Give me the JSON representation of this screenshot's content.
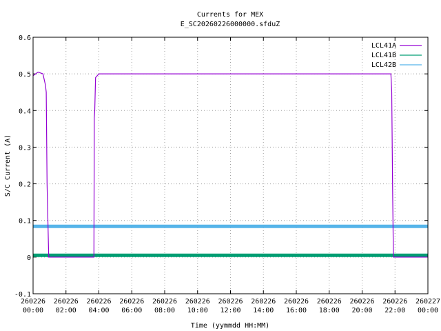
{
  "chart_data": {
    "type": "line",
    "title": "Currents for MEX",
    "subtitle": "E_SC20260226000000.sfduZ",
    "xlabel": "Time (yymmdd HH:MM)",
    "ylabel": "S/C Current (A)",
    "x_unit": "hours",
    "xlim": [
      0,
      24
    ],
    "ylim": [
      -0.1,
      0.6
    ],
    "y_ticks": [
      "-0.1",
      "0",
      "0.1",
      "0.2",
      "0.3",
      "0.4",
      "0.5",
      "0.6"
    ],
    "x_ticks": [
      {
        "date": "260226",
        "time": "00:00"
      },
      {
        "date": "260226",
        "time": "02:00"
      },
      {
        "date": "260226",
        "time": "04:00"
      },
      {
        "date": "260226",
        "time": "06:00"
      },
      {
        "date": "260226",
        "time": "08:00"
      },
      {
        "date": "260226",
        "time": "10:00"
      },
      {
        "date": "260226",
        "time": "12:00"
      },
      {
        "date": "260226",
        "time": "14:00"
      },
      {
        "date": "260226",
        "time": "16:00"
      },
      {
        "date": "260226",
        "time": "18:00"
      },
      {
        "date": "260226",
        "time": "20:00"
      },
      {
        "date": "260226",
        "time": "22:00"
      },
      {
        "date": "260227",
        "time": "00:00"
      }
    ],
    "grid": true,
    "legend_position": "top-right",
    "series": [
      {
        "name": "LCL41A",
        "color": "#9400d3",
        "x": [
          0.0,
          0.3,
          0.6,
          0.75,
          0.8,
          0.85,
          0.95,
          1.5,
          2.5,
          3.5,
          3.7,
          3.72,
          3.75,
          3.8,
          4.0,
          5.0,
          5.5,
          6.0,
          8.0,
          10.0,
          12.0,
          14.0,
          16.0,
          18.0,
          20.0,
          21.0,
          21.75,
          21.8,
          21.85,
          21.9,
          22.0,
          23.0,
          23.7,
          24.0
        ],
        "y": [
          0.495,
          0.505,
          0.5,
          0.47,
          0.45,
          0.2,
          0.0,
          0.0,
          0.0,
          0.0,
          0.0,
          0.38,
          0.4,
          0.49,
          0.5,
          0.5,
          0.5,
          0.5,
          0.5,
          0.5,
          0.5,
          0.5,
          0.5,
          0.5,
          0.5,
          0.5,
          0.5,
          0.45,
          0.2,
          0.0,
          0.0,
          0.0,
          0.0,
          0.0
        ]
      },
      {
        "name": "LCL41B",
        "color": "#009e73",
        "x": [
          0,
          4,
          6,
          8,
          12,
          16,
          20,
          24
        ],
        "y": [
          0.005,
          0.005,
          0.005,
          0.005,
          0.005,
          0.005,
          0.005,
          0.005
        ]
      },
      {
        "name": "LCL42B",
        "color": "#56b4e9",
        "x": [
          0,
          4,
          8,
          12,
          16,
          20,
          24
        ],
        "y": [
          0.084,
          0.084,
          0.084,
          0.084,
          0.084,
          0.084,
          0.084
        ]
      }
    ]
  }
}
